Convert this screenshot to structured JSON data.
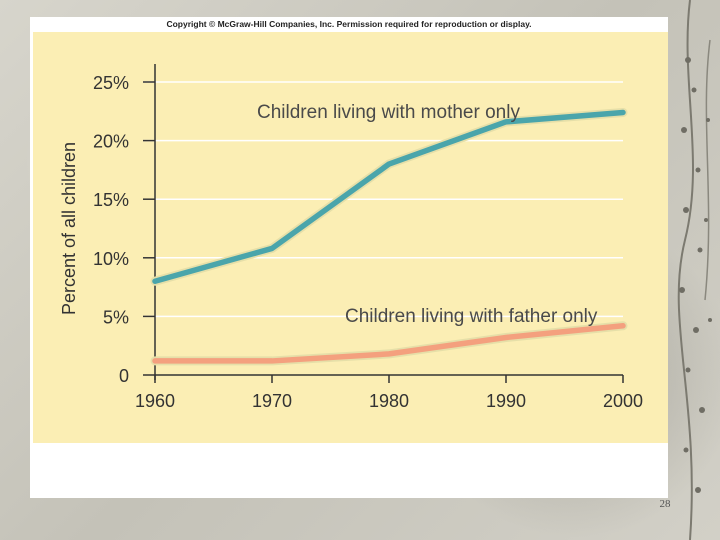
{
  "slide": {
    "copyright": "Copyright © McGraw-Hill Companies, Inc.  Permission required for reproduction or display.",
    "slide_number": "28"
  },
  "chart_data": {
    "type": "line",
    "title": "",
    "xlabel": "",
    "ylabel": "Percent of all children",
    "x": [
      1960,
      1970,
      1980,
      1990,
      2000
    ],
    "x_tick_labels": [
      "1960",
      "1970",
      "1980",
      "1990",
      "2000"
    ],
    "y_tick_values": [
      0,
      5,
      10,
      15,
      20,
      25
    ],
    "y_tick_labels": [
      "0",
      "5%",
      "10%",
      "15%",
      "20%",
      "25%"
    ],
    "ylim": [
      0,
      25
    ],
    "grid": true,
    "series": [
      {
        "name": "Children living with mother only",
        "values": [
          8.0,
          10.8,
          18.0,
          21.6,
          22.4
        ],
        "color": "#4aa5ab",
        "label_color": "#4a4a4a"
      },
      {
        "name": "Children living with father only",
        "values": [
          1.2,
          1.2,
          1.8,
          3.2,
          4.2
        ],
        "color": "#f4a07e",
        "label_color": "#4a4a4a"
      }
    ]
  }
}
